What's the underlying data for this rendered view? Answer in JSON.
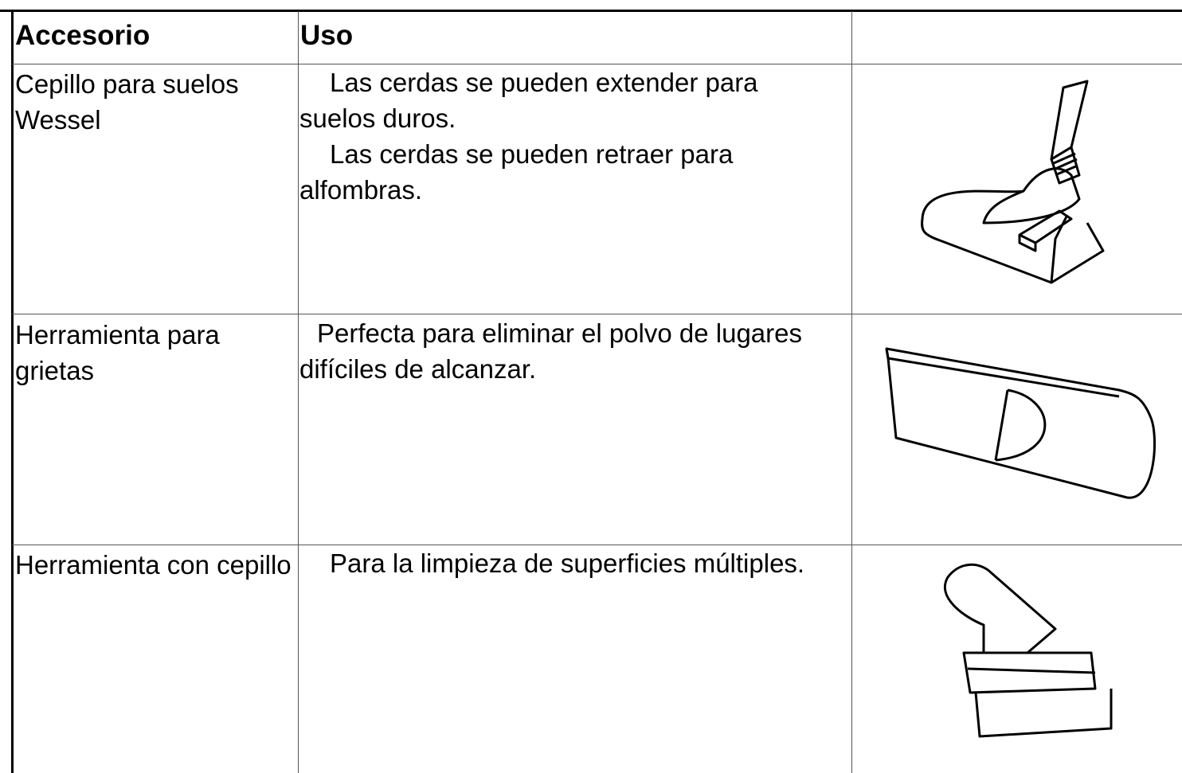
{
  "table": {
    "header": [
      "Accesorio",
      "Uso",
      ""
    ],
    "rows": [
      {
        "accessory": "Cepillo para suelos Wessel",
        "usage": [
          "Las cerdas se pueden extender para suelos duros.",
          "Las cerdas se pueden retraer para alfombras."
        ]
      },
      {
        "accessory": "Herramienta para grietas",
        "usage": [
          "Perfecta para eliminar el polvo de lugares difíciles de alcanzar."
        ]
      },
      {
        "accessory": "Herramienta con cepillo",
        "usage": [
          "Para la limpieza de superficies múltiples."
        ]
      }
    ]
  }
}
